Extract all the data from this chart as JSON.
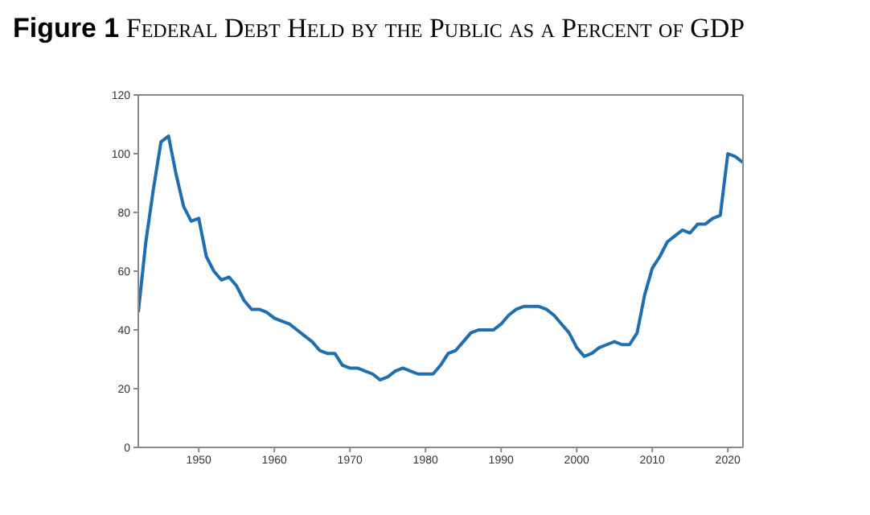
{
  "chart_data": {
    "type": "line",
    "title": "Figure 1 Federal Debt Held by the Public as a Percent of GDP",
    "x": [
      1942,
      1943,
      1944,
      1945,
      1946,
      1947,
      1948,
      1949,
      1950,
      1951,
      1952,
      1953,
      1954,
      1955,
      1956,
      1957,
      1958,
      1959,
      1960,
      1961,
      1962,
      1963,
      1964,
      1965,
      1966,
      1967,
      1968,
      1969,
      1970,
      1971,
      1972,
      1973,
      1974,
      1975,
      1976,
      1977,
      1978,
      1979,
      1980,
      1981,
      1982,
      1983,
      1984,
      1985,
      1986,
      1987,
      1988,
      1989,
      1990,
      1991,
      1992,
      1993,
      1994,
      1995,
      1996,
      1997,
      1998,
      1999,
      2000,
      2001,
      2002,
      2003,
      2004,
      2005,
      2006,
      2007,
      2008,
      2009,
      2010,
      2011,
      2012,
      2013,
      2014,
      2015,
      2016,
      2017,
      2018,
      2019,
      2020,
      2021,
      2022
    ],
    "series": [
      {
        "color": "#1f6fb0",
        "values": [
          46,
          70,
          88,
          104,
          106,
          93,
          82,
          77,
          78,
          65,
          60,
          57,
          58,
          55,
          50,
          47,
          47,
          46,
          44,
          43,
          42,
          40,
          38,
          36,
          33,
          32,
          32,
          28,
          27,
          27,
          26,
          25,
          23,
          24,
          26,
          27,
          26,
          25,
          25,
          25,
          28,
          32,
          33,
          36,
          39,
          40,
          40,
          40,
          42,
          45,
          47,
          48,
          48,
          48,
          47,
          45,
          42,
          39,
          34,
          31,
          32,
          34,
          35,
          36,
          35,
          35,
          39,
          52,
          61,
          65,
          70,
          72,
          74,
          73,
          76,
          76,
          78,
          79,
          100,
          99,
          97
        ]
      }
    ],
    "xlim": [
      1942,
      2022
    ],
    "xticks": [
      1950,
      1960,
      1970,
      1980,
      1990,
      2000,
      2010,
      2020
    ],
    "ylim": [
      0,
      120
    ],
    "yticks": [
      0,
      20,
      40,
      60,
      80,
      100,
      120
    ],
    "grid": false,
    "legend": false,
    "marker": "none",
    "line_style": "solid"
  }
}
